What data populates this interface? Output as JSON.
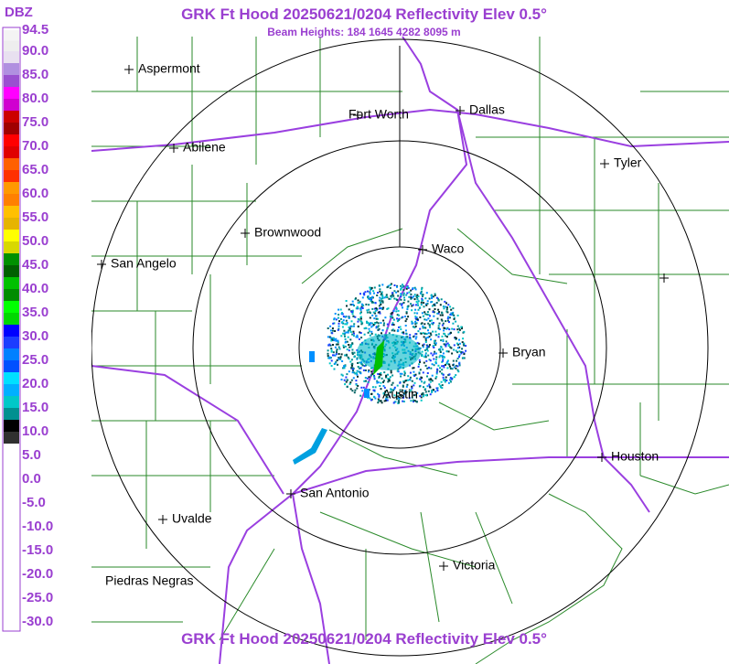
{
  "header": {
    "title": "GRK Ft Hood 20250621/0204 Reflectivity Elev 0.5°",
    "subtitle": "Beam Heights: 184 1645 4282 8095 m"
  },
  "footer": {
    "title": "GRK Ft Hood 20250621/0204 Reflectivity Elev 0.5°"
  },
  "legend": {
    "unit": "DBZ",
    "labels": [
      "94.5",
      "90.0",
      "85.0",
      "80.0",
      "75.0",
      "70.0",
      "65.0",
      "60.0",
      "55.0",
      "50.0",
      "45.0",
      "40.0",
      "35.0",
      "30.0",
      "25.0",
      "20.0",
      "15.0",
      "10.0",
      "5.0",
      "0.0",
      "-5.0",
      "-10.0",
      "-15.0",
      "-20.0",
      "-25.0",
      "-30.0"
    ]
  },
  "cities": [
    "Aspermont",
    "Fort Worth",
    "Dallas",
    "Abilene",
    "Tyler",
    "Brownwood",
    "Waco",
    "San Angelo",
    "Bryan",
    "Austin",
    "Houston",
    "San Antonio",
    "Uvalde",
    "Victoria",
    "Piedras Negras"
  ]
}
